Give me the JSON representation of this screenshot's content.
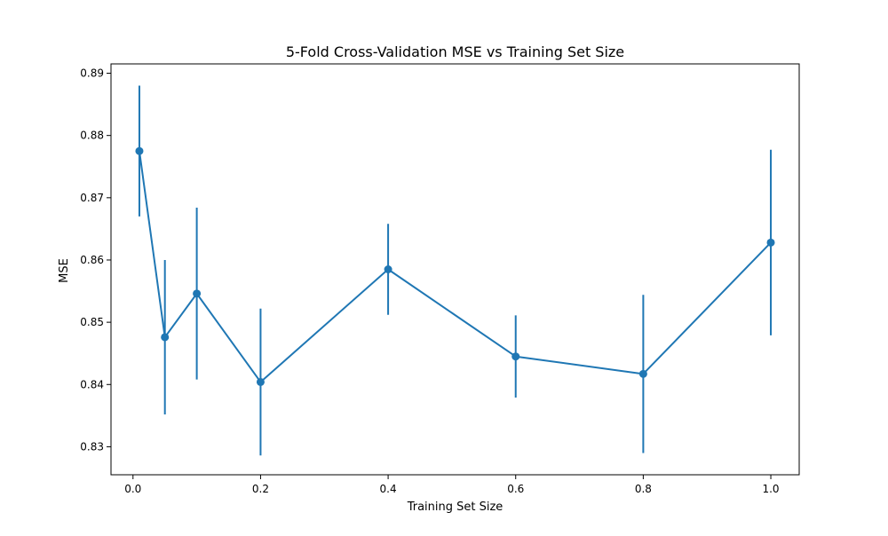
{
  "chart_data": {
    "type": "line",
    "title": "5-Fold Cross-Validation MSE vs Training Set Size",
    "xlabel": "Training Set Size",
    "ylabel": "MSE",
    "xlim": [
      -0.0345,
      1.0445
    ],
    "ylim": [
      0.8255,
      0.8915
    ],
    "xticks": [
      0.0,
      0.2,
      0.4,
      0.6,
      0.8,
      1.0
    ],
    "xtick_labels": [
      "0.0",
      "0.2",
      "0.4",
      "0.6",
      "0.8",
      "1.0"
    ],
    "yticks": [
      0.83,
      0.84,
      0.85,
      0.86,
      0.87,
      0.88,
      0.89
    ],
    "ytick_labels": [
      "0.83",
      "0.84",
      "0.85",
      "0.86",
      "0.87",
      "0.88",
      "0.89"
    ],
    "grid": false,
    "legend": "none",
    "series": [
      {
        "color": "#1f77b4",
        "x": [
          0.01,
          0.05,
          0.1,
          0.2,
          0.4,
          0.6,
          0.8,
          1.0
        ],
        "y": [
          0.8775,
          0.8476,
          0.8546,
          0.8404,
          0.8585,
          0.8445,
          0.8417,
          0.8628
        ],
        "yerr": [
          0.0105,
          0.0124,
          0.0138,
          0.0118,
          0.0073,
          0.0066,
          0.0127,
          0.0149
        ]
      }
    ]
  }
}
